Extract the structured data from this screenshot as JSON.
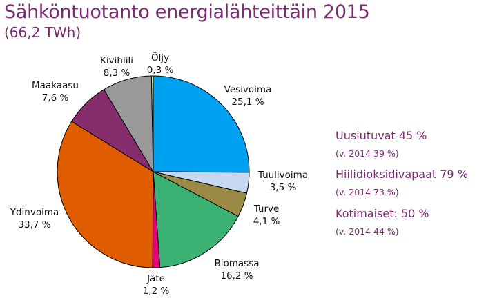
{
  "title": "Sähköntuotanto energialähteittäin 2015",
  "subtitle": "(66,2 TWh)",
  "colors": {
    "title": "#7b2a73",
    "Vesivoima": "#00a1f1",
    "Tuulivoima": "#c6d9f1",
    "Turve": "#9a8a45",
    "Biomassa": "#3bb273",
    "Jäte": "#e6007e",
    "Ydinvoima": "#e05c00",
    "Maakaasu": "#862d6e",
    "Kivihiili": "#999999",
    "Öljy": "#d6e38a"
  },
  "chart_data": {
    "type": "pie",
    "title": "Sähköntuotanto energialähteittäin 2015",
    "subtitle": "(66,2 TWh)",
    "unit": "%",
    "slices": [
      {
        "name": "Vesivoima",
        "value": 25.1,
        "label": "25,1 %"
      },
      {
        "name": "Tuulivoima",
        "value": 3.5,
        "label": "3,5 %"
      },
      {
        "name": "Turve",
        "value": 4.1,
        "label": "4,1 %"
      },
      {
        "name": "Biomassa",
        "value": 16.2,
        "label": "16,2 %"
      },
      {
        "name": "Jäte",
        "value": 1.2,
        "label": "1,2 %"
      },
      {
        "name": "Ydinvoima",
        "value": 33.7,
        "label": "33,7 %"
      },
      {
        "name": "Maakaasu",
        "value": 7.6,
        "label": "7,6 %"
      },
      {
        "name": "Kivihiili",
        "value": 8.3,
        "label": "8,3 %"
      },
      {
        "name": "Öljy",
        "value": 0.3,
        "label": "0,3 %"
      }
    ]
  },
  "stats": [
    {
      "main": "Uusiutuvat 45 %",
      "sub": "(v. 2014 39 %)"
    },
    {
      "main": "Hiilidioksidivapaat 79 %",
      "sub": "(v. 2014 73 %)"
    },
    {
      "main": "Kotimaiset: 50 %",
      "sub": "(v. 2014 44 %)"
    }
  ]
}
